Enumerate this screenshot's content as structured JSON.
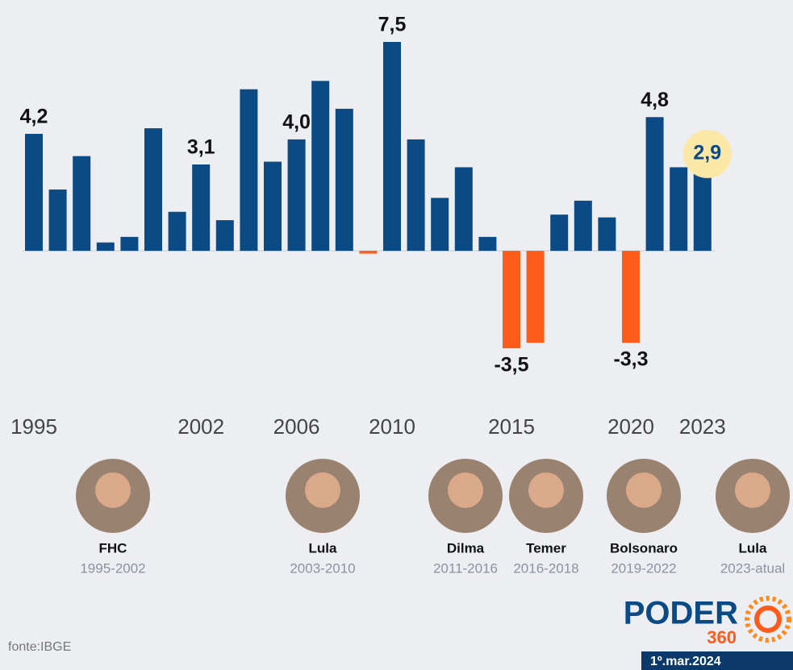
{
  "chart_data": {
    "type": "bar",
    "categories": [
      "1995",
      null,
      null,
      null,
      null,
      null,
      null,
      "2002",
      null,
      null,
      null,
      "2006",
      null,
      null,
      null,
      "2010",
      null,
      null,
      null,
      null,
      "2015",
      null,
      null,
      null,
      null,
      "2020",
      null,
      null,
      "2023"
    ],
    "values": [
      4.2,
      2.2,
      3.4,
      0.3,
      0.5,
      4.4,
      1.4,
      3.1,
      1.1,
      5.8,
      3.2,
      4.0,
      6.1,
      5.1,
      -0.1,
      7.5,
      4.0,
      1.9,
      3.0,
      0.5,
      -3.5,
      -3.3,
      1.3,
      1.8,
      1.2,
      -3.3,
      4.8,
      3.0,
      2.9
    ],
    "value_labels": [
      "4,2",
      null,
      null,
      null,
      null,
      null,
      null,
      "3,1",
      null,
      null,
      null,
      "4,0",
      null,
      null,
      null,
      "7,5",
      null,
      null,
      null,
      null,
      "-3,5",
      null,
      null,
      null,
      null,
      "-3,3",
      "4,8",
      null,
      "2,9"
    ],
    "color": "#0b4a84",
    "negative_color": "#ff5b1a",
    "ylim": [
      -3.5,
      7.5
    ]
  },
  "presidents": [
    {
      "name": "FHC",
      "period": "1995-2002"
    },
    {
      "name": "Lula",
      "period": "2003-2010"
    },
    {
      "name": "Dilma",
      "period": "2011-2016"
    },
    {
      "name": "Temer",
      "period": "2016-2018"
    },
    {
      "name": "Bolsonaro",
      "period": "2019-2022"
    },
    {
      "name": "Lula",
      "period": "2023-atual"
    }
  ],
  "footer": {
    "source": "fonte:IBGE",
    "logo": "PODER",
    "logo_number": "360",
    "date": "1º.mar.2024"
  }
}
